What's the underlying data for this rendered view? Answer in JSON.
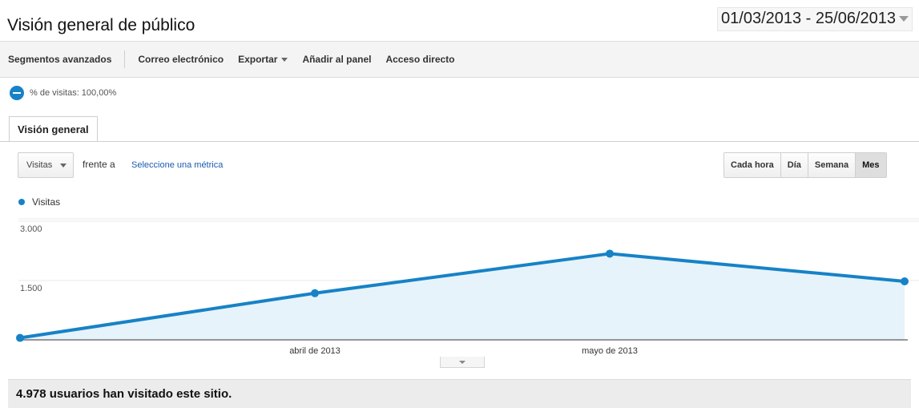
{
  "page_title": "Visión general de público",
  "date_range": "01/03/2013 - 25/06/2013",
  "toolbar": {
    "advanced_segments": "Segmentos avanzados",
    "email": "Correo electrónico",
    "export": "Exportar",
    "add_to_dashboard": "Añadir al panel",
    "shortcut": "Acceso directo"
  },
  "segment": {
    "label": "% de visitas: 100,00%"
  },
  "tabs": [
    {
      "label": "Visión general"
    }
  ],
  "metric": {
    "selected": "Visitas",
    "versus_label": "frente a",
    "select_metric": "Seleccione una métrica"
  },
  "granularity": {
    "options": [
      "Cada hora",
      "Día",
      "Semana",
      "Mes"
    ],
    "active": "Mes"
  },
  "summary": "4.978 usuarios han visitado este sitio.",
  "colors": {
    "series": "#1782c6",
    "area": "#e6f3fa"
  },
  "chart_data": {
    "type": "area",
    "series": [
      {
        "name": "Visitas",
        "values": [
          50,
          1180,
          2180,
          1480
        ]
      }
    ],
    "x": [
      "2013-03",
      "2013-04",
      "2013-05",
      "2013-06"
    ],
    "x_tick_labels": [
      "abril de 2013",
      "mayo de 2013"
    ],
    "y_tick_labels": [
      "3.000",
      "1.500"
    ],
    "ylim": [
      0,
      3000
    ],
    "grid": true,
    "legend": "top-left"
  }
}
